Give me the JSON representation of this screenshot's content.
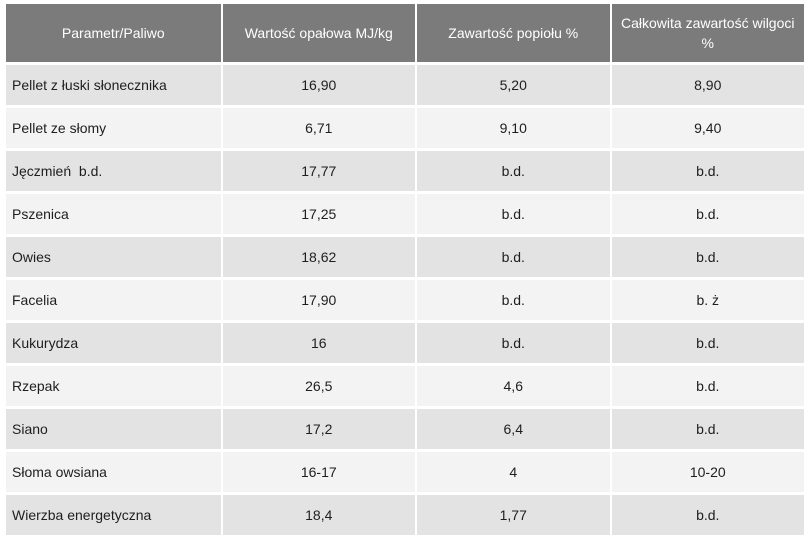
{
  "table": {
    "headers": [
      "Parametr/Paliwo",
      "Wartość opałowa MJ/kg",
      "Zawartość popiołu %",
      "Całkowita zawartość wilgoci %"
    ],
    "rows": [
      [
        "Pellet z łuski słonecznika",
        "16,90",
        "5,20",
        "8,90"
      ],
      [
        "Pellet ze słomy",
        "6,71",
        "9,10",
        "9,40"
      ],
      [
        "Jęczmień  b.d.",
        "17,77",
        "b.d.",
        "b.d."
      ],
      [
        "Pszenica",
        "17,25",
        "b.d.",
        "b.d."
      ],
      [
        "Owies",
        "18,62",
        "b.d.",
        "b.d."
      ],
      [
        "Facelia",
        "17,90",
        "b.d.",
        "b. ż"
      ],
      [
        "Kukurydza",
        "16",
        "b.d.",
        "b.d."
      ],
      [
        "Rzepak",
        "26,5",
        "4,6",
        "b.d."
      ],
      [
        "Siano",
        "17,2",
        "6,4",
        "b.d."
      ],
      [
        "Słoma owsiana",
        "16-17",
        "4",
        "10-20"
      ],
      [
        "Wierzba energetyczna",
        "18,4",
        "1,77",
        "b.d."
      ]
    ]
  }
}
